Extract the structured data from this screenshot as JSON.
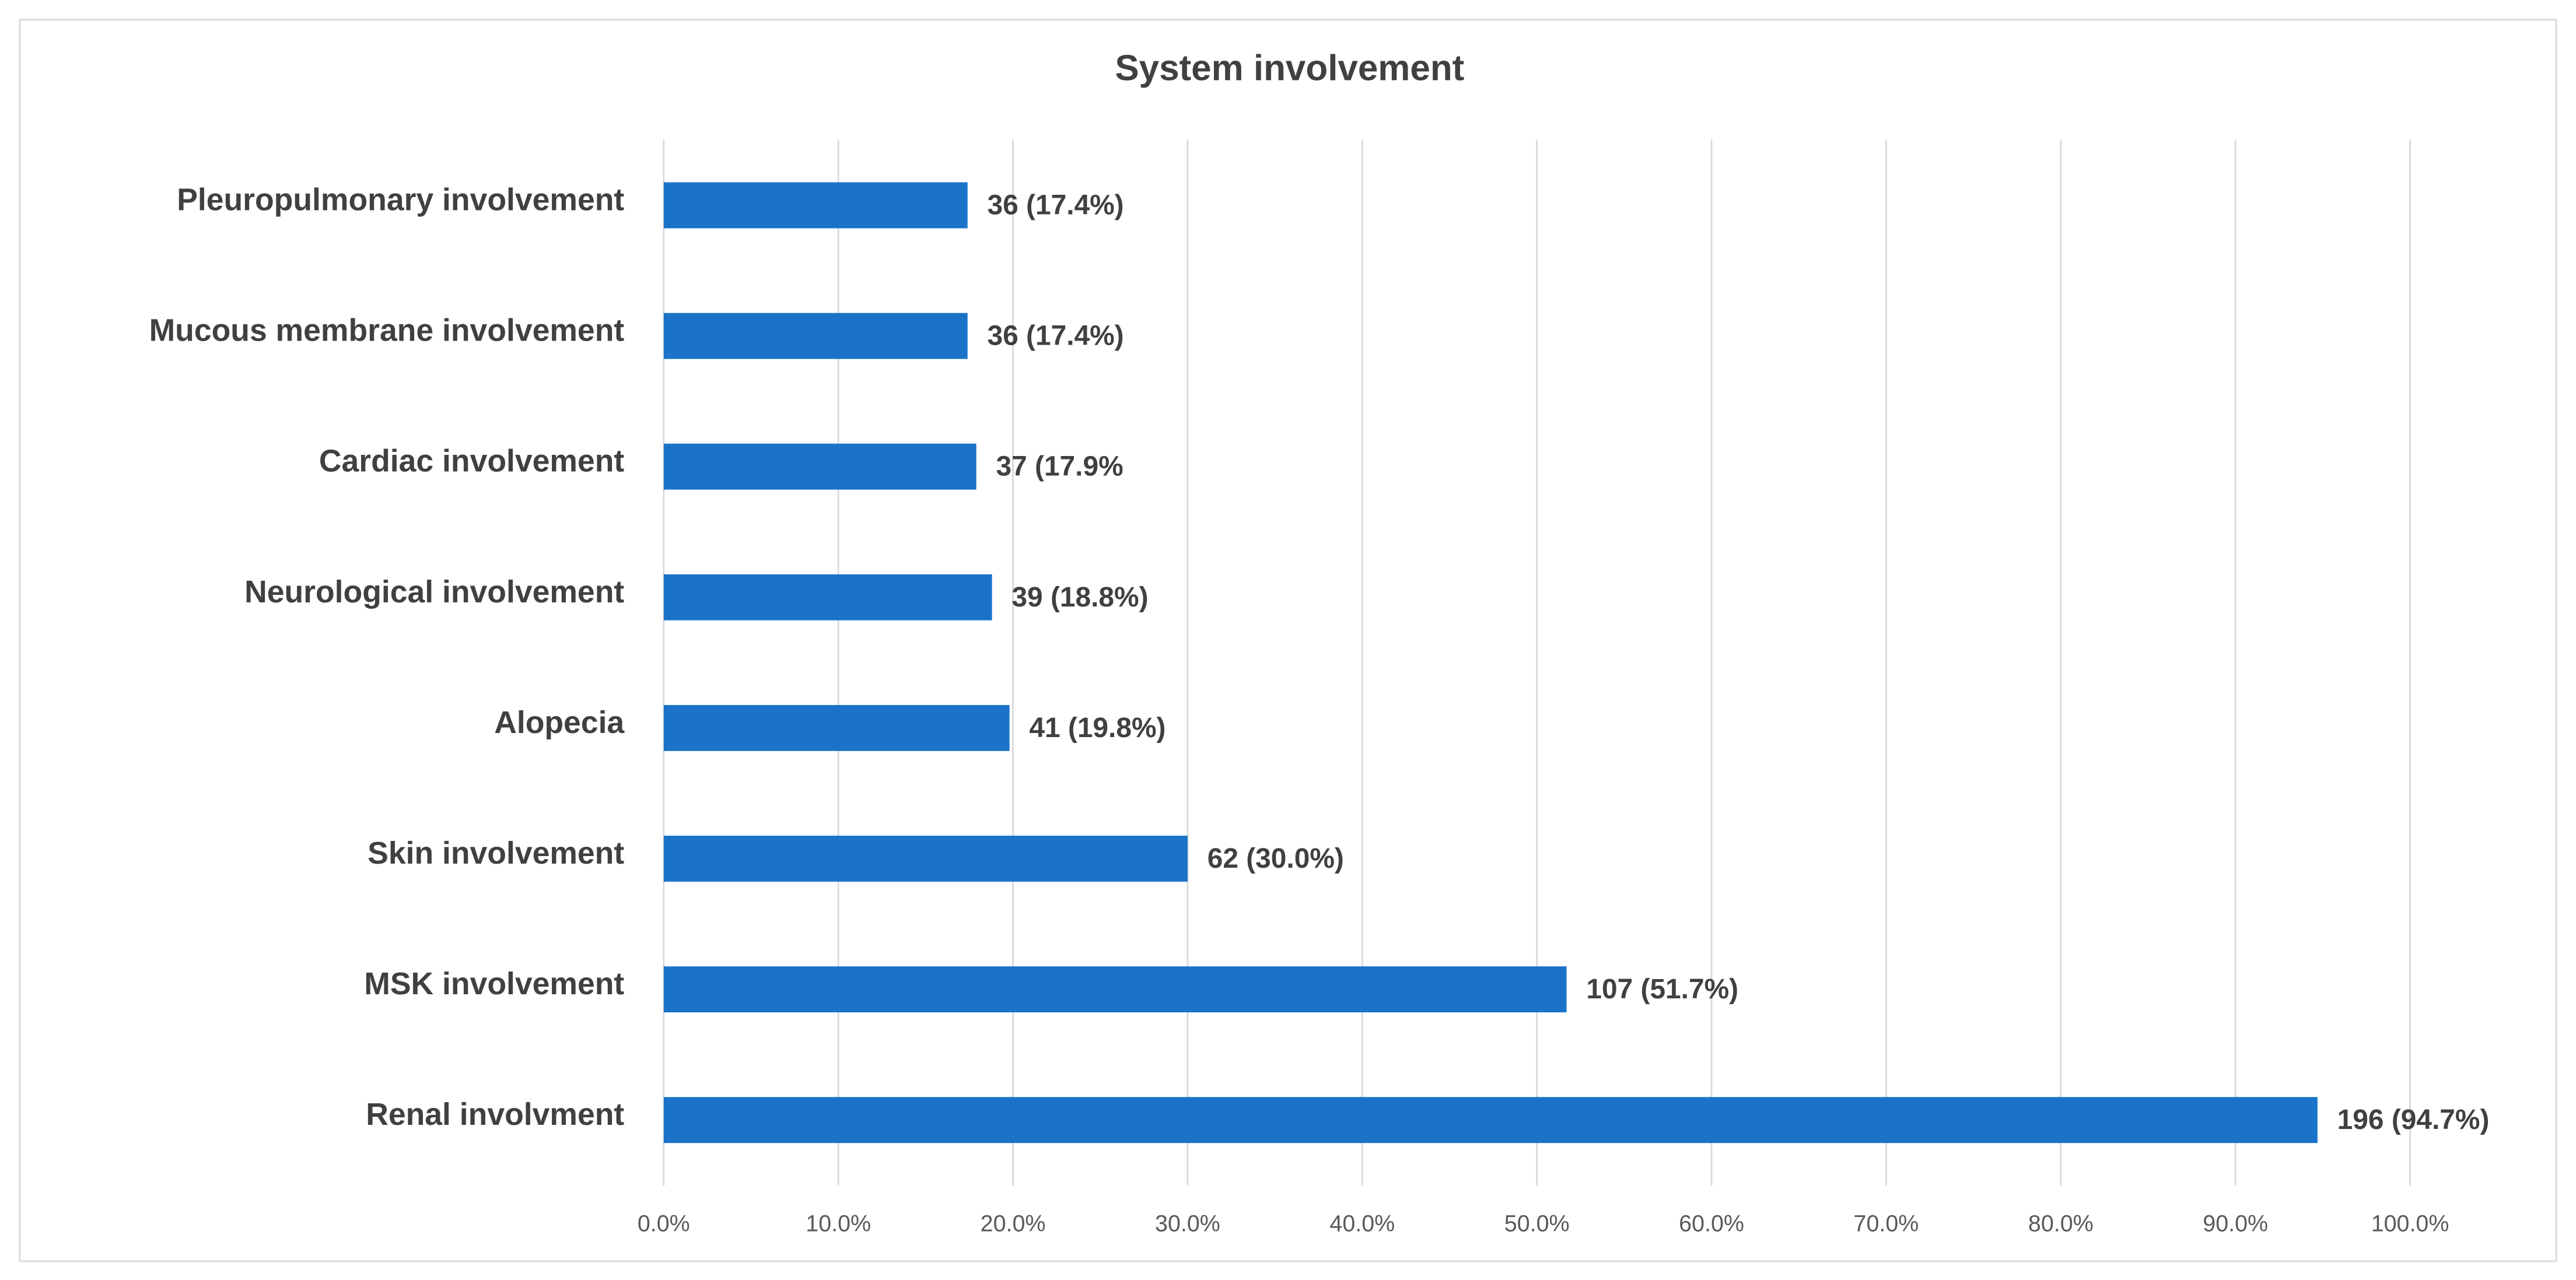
{
  "chart_data": {
    "type": "bar",
    "orientation": "horizontal",
    "title": "System involvement",
    "categories": [
      "Pleuropulmonary involvement",
      "Mucous membrane involvement",
      "Cardiac involvement",
      "Neurological involvement",
      "Alopecia",
      "Skin involvement",
      "MSK involvement",
      "Renal involvment"
    ],
    "values": [
      17.4,
      17.4,
      17.9,
      18.8,
      19.8,
      30.0,
      51.7,
      94.7
    ],
    "value_labels": [
      "36 (17.4%)",
      "36 (17.4%)",
      "37 (17.9%",
      "39 (18.8%)",
      "41 (19.8%)",
      "62 (30.0%)",
      "107 (51.7%)",
      "196 (94.7%)"
    ],
    "color": "#1a73c9",
    "xlim": [
      0,
      100
    ],
    "xticks": [
      {
        "value": 0,
        "label": "0.0%"
      },
      {
        "value": 10,
        "label": "10.0%"
      },
      {
        "value": 20,
        "label": "20.0%"
      },
      {
        "value": 30,
        "label": "30.0%"
      },
      {
        "value": 40,
        "label": "40.0%"
      },
      {
        "value": 50,
        "label": "50.0%"
      },
      {
        "value": 60,
        "label": "60.0%"
      },
      {
        "value": 70,
        "label": "70.0%"
      },
      {
        "value": 80,
        "label": "80.0%"
      },
      {
        "value": 90,
        "label": "90.0%"
      },
      {
        "value": 100,
        "label": "100.0%"
      }
    ],
    "grid": true
  }
}
